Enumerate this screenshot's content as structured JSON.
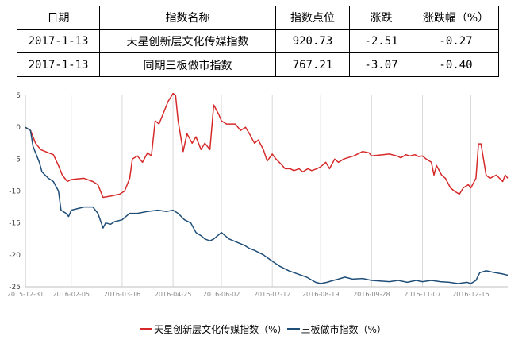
{
  "table": {
    "headers": [
      "日期",
      "指数名称",
      "指数点位",
      "涨跌",
      "涨跌幅（%）"
    ],
    "rows": [
      [
        "2017-1-13",
        "天星创新层文化传媒指数",
        "920.73",
        "-2.51",
        "-0.27"
      ],
      [
        "2017-1-13",
        "同期三板做市指数",
        "767.21",
        "-3.07",
        "-0.40"
      ]
    ]
  },
  "chart_data": {
    "type": "line",
    "title": "",
    "xlabel": "",
    "ylabel": "",
    "ylim": [
      -25,
      5
    ],
    "yticks": [
      5,
      0,
      -5,
      -10,
      -15,
      -20,
      -25
    ],
    "xlim": [
      "2015-12-31",
      "2017-01-13"
    ],
    "xticks": [
      "2015-12-31",
      "2016-02-05",
      "2016-03-16",
      "2016-04-25",
      "2016-06-02",
      "2016-07-12",
      "2016-08-19",
      "2016-09-28",
      "2016-11-07",
      "2016-12-15"
    ],
    "grid": "vertical",
    "legend_position": "bottom",
    "series": [
      {
        "name": "天星创新层文化传媒指数（%）",
        "color": "#d62a2a",
        "points": [
          [
            "2015-12-31",
            0
          ],
          [
            "2016-01-04",
            -0.5
          ],
          [
            "2016-01-06",
            -1.5
          ],
          [
            "2016-01-08",
            -2.5
          ],
          [
            "2016-01-12",
            -3.5
          ],
          [
            "2016-01-18",
            -4.0
          ],
          [
            "2016-01-22",
            -4.3
          ],
          [
            "2016-01-26",
            -6.0
          ],
          [
            "2016-01-29",
            -7.5
          ],
          [
            "2016-02-02",
            -8.5
          ],
          [
            "2016-02-05",
            -8.2
          ],
          [
            "2016-02-15",
            -8.0
          ],
          [
            "2016-02-22",
            -8.5
          ],
          [
            "2016-02-26",
            -9.0
          ],
          [
            "2016-03-01",
            -11.0
          ],
          [
            "2016-03-07",
            -10.8
          ],
          [
            "2016-03-14",
            -10.5
          ],
          [
            "2016-03-18",
            -10.0
          ],
          [
            "2016-03-22",
            -8.0
          ],
          [
            "2016-03-24",
            -5.0
          ],
          [
            "2016-03-28",
            -4.5
          ],
          [
            "2016-04-01",
            -5.5
          ],
          [
            "2016-04-05",
            -4.0
          ],
          [
            "2016-04-08",
            -4.5
          ],
          [
            "2016-04-11",
            1.0
          ],
          [
            "2016-04-14",
            0.5
          ],
          [
            "2016-04-18",
            2.5
          ],
          [
            "2016-04-21",
            4.0
          ],
          [
            "2016-04-25",
            5.3
          ],
          [
            "2016-04-27",
            5.0
          ],
          [
            "2016-04-29",
            1.0
          ],
          [
            "2016-05-03",
            -3.8
          ],
          [
            "2016-05-06",
            -1.0
          ],
          [
            "2016-05-10",
            -2.5
          ],
          [
            "2016-05-13",
            -1.5
          ],
          [
            "2016-05-17",
            -3.5
          ],
          [
            "2016-05-20",
            -2.5
          ],
          [
            "2016-05-24",
            -3.5
          ],
          [
            "2016-05-27",
            3.5
          ],
          [
            "2016-05-31",
            2.0
          ],
          [
            "2016-06-02",
            1.0
          ],
          [
            "2016-06-06",
            0.5
          ],
          [
            "2016-06-13",
            0.5
          ],
          [
            "2016-06-17",
            -0.5
          ],
          [
            "2016-06-21",
            0.0
          ],
          [
            "2016-06-24",
            -1.0
          ],
          [
            "2016-06-28",
            -2.5
          ],
          [
            "2016-07-01",
            -2.0
          ],
          [
            "2016-07-05",
            -3.5
          ],
          [
            "2016-07-08",
            -5.3
          ],
          [
            "2016-07-12",
            -4.2
          ],
          [
            "2016-07-15",
            -5.0
          ],
          [
            "2016-07-19",
            -5.8
          ],
          [
            "2016-07-22",
            -6.5
          ],
          [
            "2016-07-26",
            -6.5
          ],
          [
            "2016-07-29",
            -6.8
          ],
          [
            "2016-08-02",
            -6.5
          ],
          [
            "2016-08-05",
            -7.0
          ],
          [
            "2016-08-09",
            -6.5
          ],
          [
            "2016-08-12",
            -6.8
          ],
          [
            "2016-08-16",
            -6.5
          ],
          [
            "2016-08-19",
            -6.2
          ],
          [
            "2016-08-23",
            -5.5
          ],
          [
            "2016-08-26",
            -6.5
          ],
          [
            "2016-08-30",
            -5.0
          ],
          [
            "2016-09-02",
            -5.5
          ],
          [
            "2016-09-06",
            -5.0
          ],
          [
            "2016-09-09",
            -4.8
          ],
          [
            "2016-09-14",
            -4.5
          ],
          [
            "2016-09-21",
            -3.8
          ],
          [
            "2016-09-26",
            -4.0
          ],
          [
            "2016-09-28",
            -4.5
          ],
          [
            "2016-10-12",
            -4.2
          ],
          [
            "2016-10-18",
            -4.5
          ],
          [
            "2016-10-21",
            -4.8
          ],
          [
            "2016-10-25",
            -4.3
          ],
          [
            "2016-10-28",
            -4.5
          ],
          [
            "2016-11-01",
            -4.3
          ],
          [
            "2016-11-04",
            -4.6
          ],
          [
            "2016-11-07",
            -4.5
          ],
          [
            "2016-11-10",
            -5.0
          ],
          [
            "2016-11-14",
            -5.5
          ],
          [
            "2016-11-16",
            -7.5
          ],
          [
            "2016-11-18",
            -6.0
          ],
          [
            "2016-11-22",
            -7.5
          ],
          [
            "2016-11-25",
            -8.0
          ],
          [
            "2016-11-29",
            -9.5
          ],
          [
            "2016-12-02",
            -10.0
          ],
          [
            "2016-12-06",
            -10.5
          ],
          [
            "2016-12-09",
            -9.5
          ],
          [
            "2016-12-13",
            -9.0
          ],
          [
            "2016-12-15",
            -9.5
          ],
          [
            "2016-12-19",
            -8.0
          ],
          [
            "2016-12-21",
            -2.6
          ],
          [
            "2016-12-23",
            -2.6
          ],
          [
            "2016-12-27",
            -7.5
          ],
          [
            "2016-12-30",
            -8.0
          ],
          [
            "2017-01-04",
            -7.5
          ],
          [
            "2017-01-09",
            -8.5
          ],
          [
            "2017-01-11",
            -7.5
          ],
          [
            "2017-01-13",
            -8.0
          ]
        ]
      },
      {
        "name": "三板做市指数（%）",
        "color": "#1f4e79",
        "points": [
          [
            "2015-12-31",
            0
          ],
          [
            "2016-01-04",
            -0.5
          ],
          [
            "2016-01-06",
            -3.0
          ],
          [
            "2016-01-08",
            -4.0
          ],
          [
            "2016-01-11",
            -5.5
          ],
          [
            "2016-01-13",
            -7.0
          ],
          [
            "2016-01-18",
            -8.0
          ],
          [
            "2016-01-22",
            -8.5
          ],
          [
            "2016-01-26",
            -10.0
          ],
          [
            "2016-01-28",
            -13.0
          ],
          [
            "2016-02-01",
            -13.5
          ],
          [
            "2016-02-03",
            -14.0
          ],
          [
            "2016-02-05",
            -13.0
          ],
          [
            "2016-02-15",
            -12.5
          ],
          [
            "2016-02-22",
            -12.5
          ],
          [
            "2016-02-26",
            -13.5
          ],
          [
            "2016-03-01",
            -15.8
          ],
          [
            "2016-03-03",
            -15.0
          ],
          [
            "2016-03-07",
            -15.2
          ],
          [
            "2016-03-10",
            -14.8
          ],
          [
            "2016-03-16",
            -14.5
          ],
          [
            "2016-03-22",
            -13.5
          ],
          [
            "2016-03-28",
            -13.5
          ],
          [
            "2016-04-05",
            -13.2
          ],
          [
            "2016-04-13",
            -13.0
          ],
          [
            "2016-04-20",
            -13.2
          ],
          [
            "2016-04-25",
            -13.0
          ],
          [
            "2016-04-29",
            -13.5
          ],
          [
            "2016-05-04",
            -14.5
          ],
          [
            "2016-05-09",
            -15.0
          ],
          [
            "2016-05-13",
            -16.5
          ],
          [
            "2016-05-17",
            -17.0
          ],
          [
            "2016-05-20",
            -17.5
          ],
          [
            "2016-05-24",
            -17.8
          ],
          [
            "2016-05-27",
            -17.5
          ],
          [
            "2016-06-02",
            -16.5
          ],
          [
            "2016-06-08",
            -17.5
          ],
          [
            "2016-06-14",
            -18.0
          ],
          [
            "2016-06-20",
            -18.5
          ],
          [
            "2016-06-24",
            -19.0
          ],
          [
            "2016-06-28",
            -19.3
          ],
          [
            "2016-07-05",
            -20.0
          ],
          [
            "2016-07-12",
            -21.0
          ],
          [
            "2016-07-18",
            -21.8
          ],
          [
            "2016-07-25",
            -22.5
          ],
          [
            "2016-08-01",
            -23.0
          ],
          [
            "2016-08-08",
            -23.5
          ],
          [
            "2016-08-15",
            -24.3
          ],
          [
            "2016-08-19",
            -24.5
          ],
          [
            "2016-08-24",
            -24.3
          ],
          [
            "2016-08-29",
            -24.0
          ],
          [
            "2016-09-02",
            -23.8
          ],
          [
            "2016-09-07",
            -23.5
          ],
          [
            "2016-09-13",
            -23.8
          ],
          [
            "2016-09-21",
            -23.7
          ],
          [
            "2016-09-28",
            -24.0
          ],
          [
            "2016-10-12",
            -24.2
          ],
          [
            "2016-10-19",
            -24.0
          ],
          [
            "2016-10-26",
            -24.3
          ],
          [
            "2016-11-02",
            -24.0
          ],
          [
            "2016-11-07",
            -24.2
          ],
          [
            "2016-11-14",
            -24.0
          ],
          [
            "2016-11-21",
            -24.2
          ],
          [
            "2016-11-28",
            -24.3
          ],
          [
            "2016-12-05",
            -24.5
          ],
          [
            "2016-12-12",
            -24.3
          ],
          [
            "2016-12-15",
            -24.5
          ],
          [
            "2016-12-19",
            -24.0
          ],
          [
            "2016-12-22",
            -22.8
          ],
          [
            "2016-12-27",
            -22.5
          ],
          [
            "2017-01-03",
            -22.8
          ],
          [
            "2017-01-09",
            -23.0
          ],
          [
            "2017-01-13",
            -23.2
          ]
        ]
      }
    ]
  }
}
